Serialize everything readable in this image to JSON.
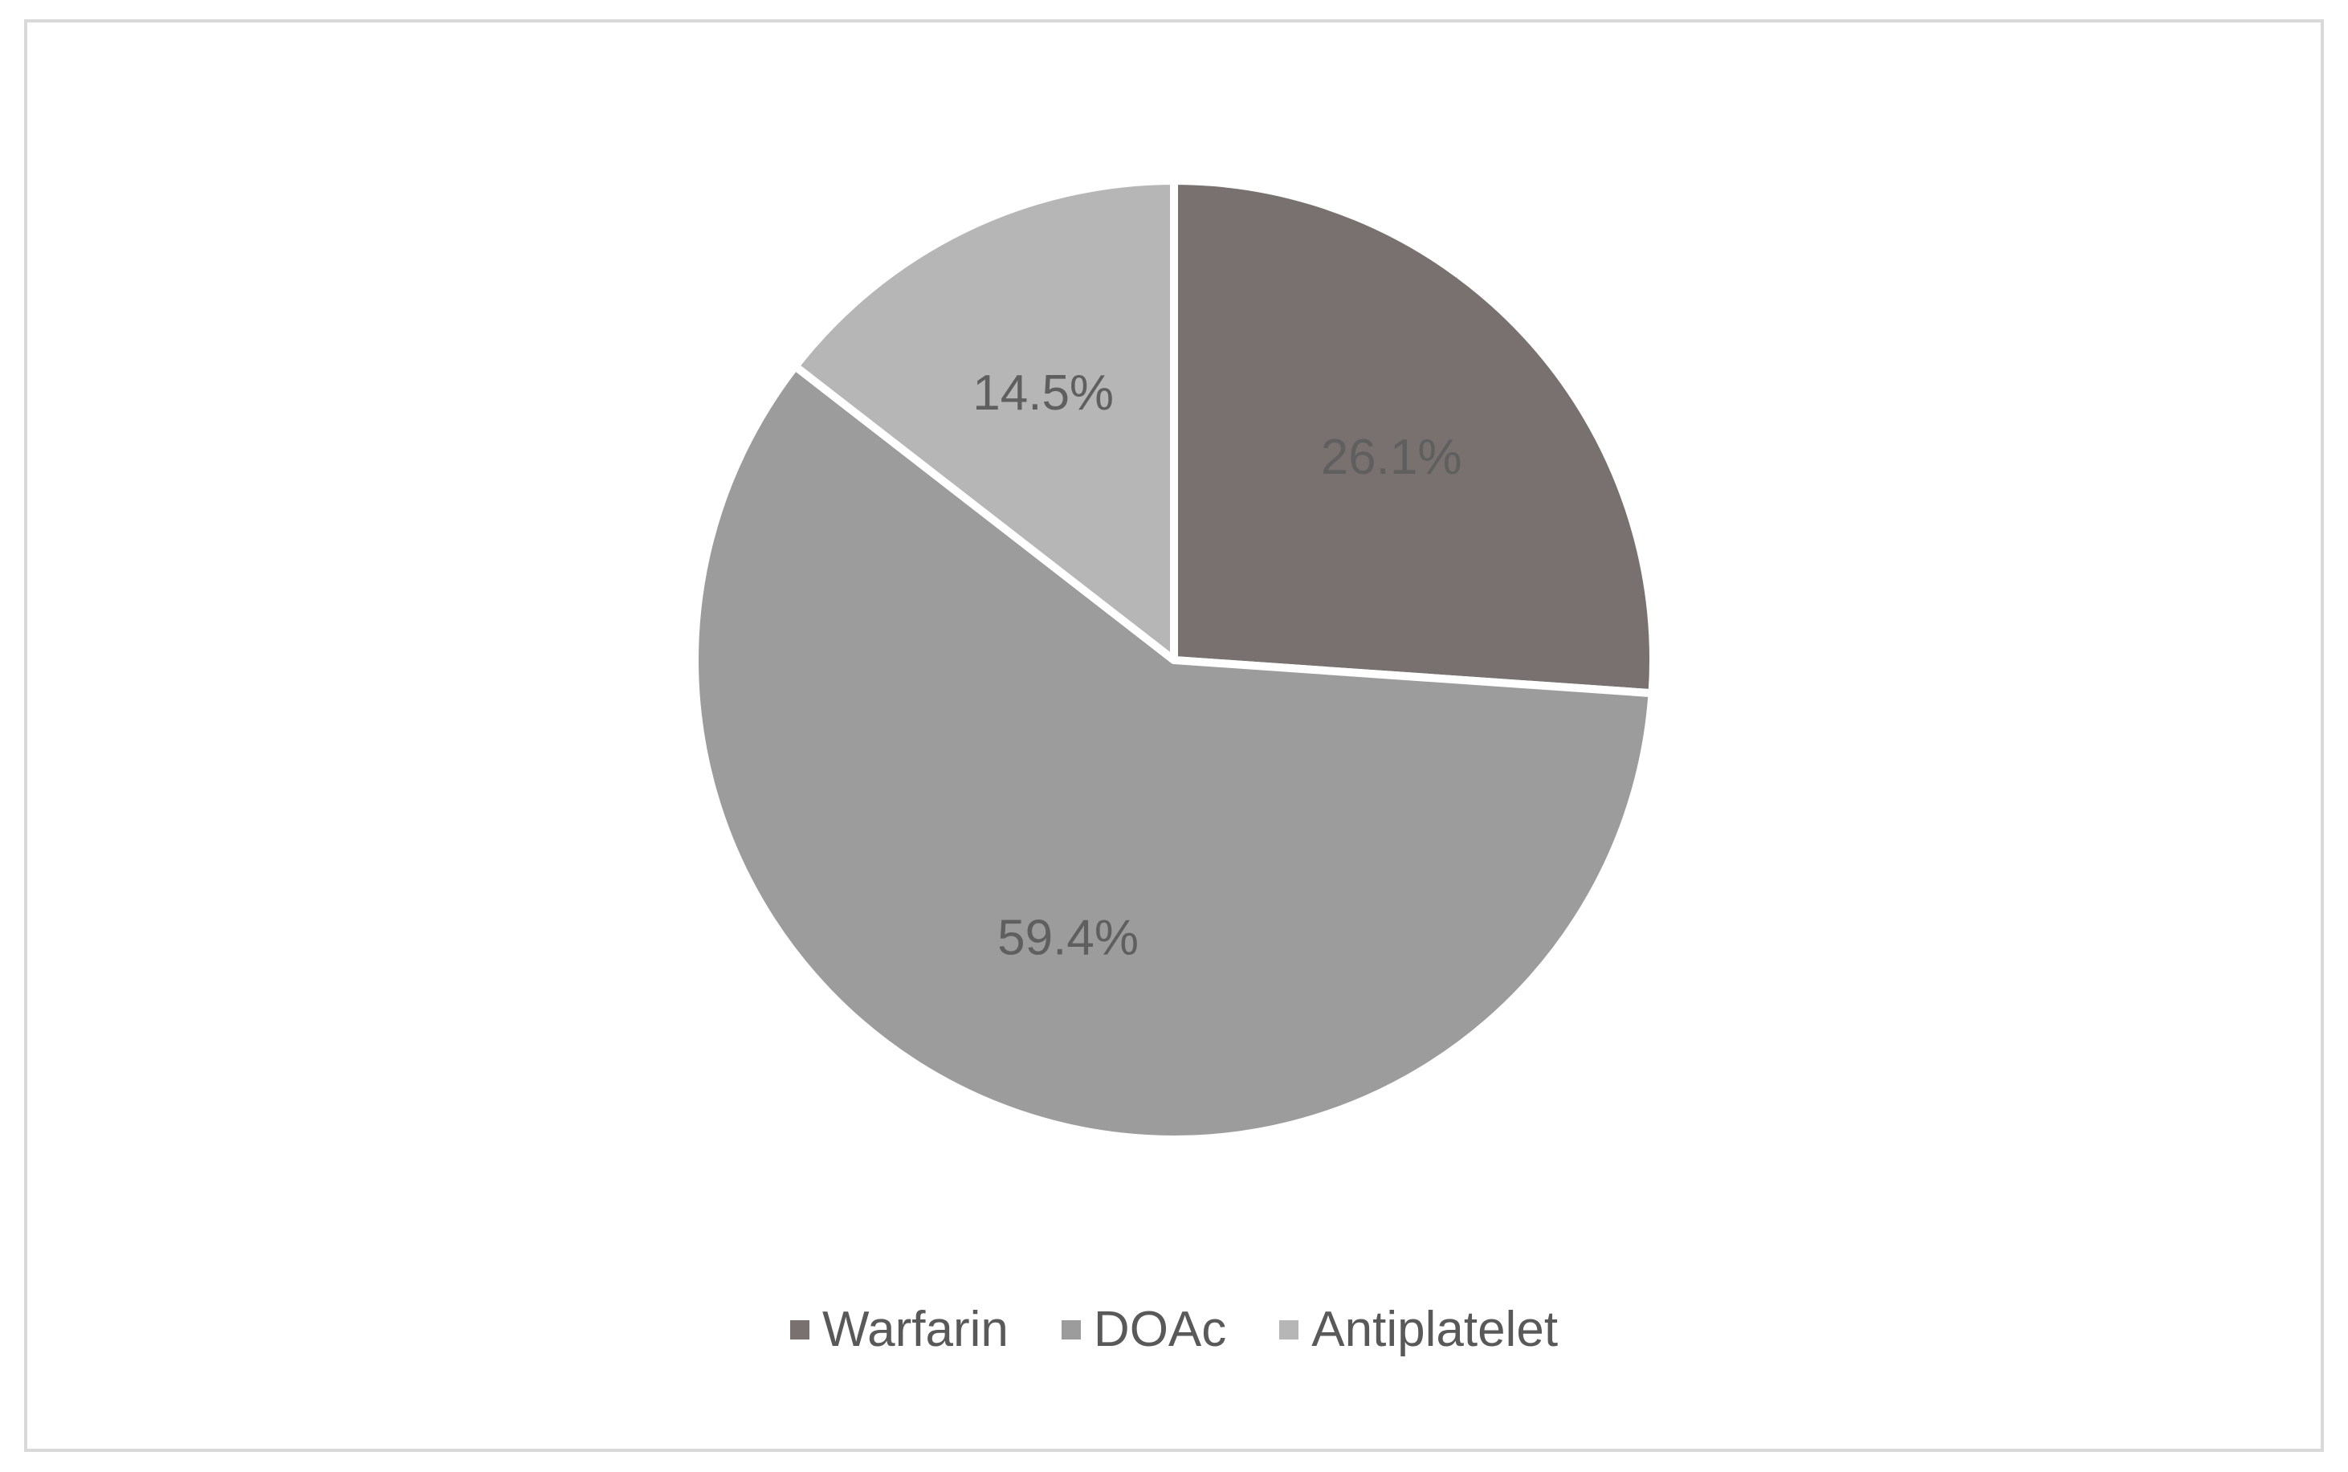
{
  "chart_data": {
    "type": "pie",
    "title": "",
    "slices": [
      {
        "name": "Warfarin",
        "value": 26.1,
        "label": "26.1%",
        "color": "#787170"
      },
      {
        "name": "DOAc",
        "value": 59.4,
        "label": "59.4%",
        "color": "#9c9c9c"
      },
      {
        "name": "Antiplatelet",
        "value": 14.5,
        "label": "14.5%",
        "color": "#b6b6b6"
      }
    ],
    "start_angle_deg": 0,
    "direction": "clockwise",
    "legend_position": "bottom",
    "legend": [
      "Warfarin",
      "DOAc",
      "Antiplatelet"
    ]
  }
}
